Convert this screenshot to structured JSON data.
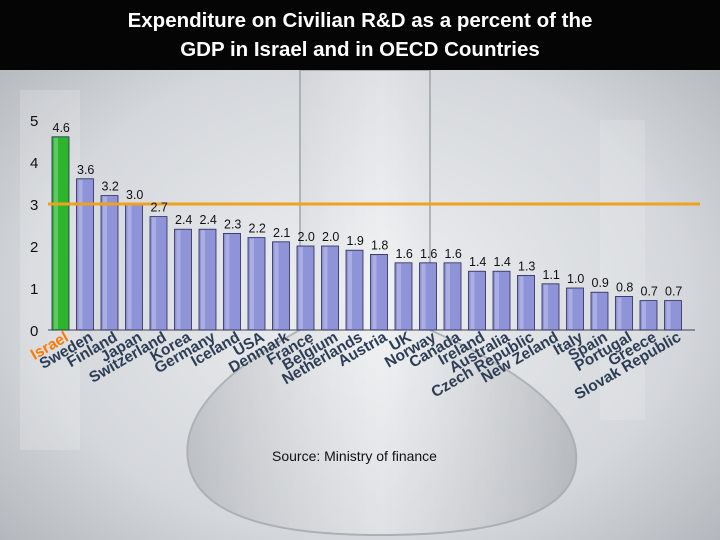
{
  "title_line1": "Expenditure on Civilian R&D as a percent of the",
  "title_line2": "GDP in Israel and in OECD Countries",
  "source": "Source: Ministry of finance",
  "colors": {
    "bar": "#8f93d8",
    "bar_highlight": "#2db52d",
    "oecd_line": "#f0a21e",
    "title_bg": "#050505"
  },
  "chart_data": {
    "type": "bar",
    "title": "Expenditure on Civilian R&D as a percent of the GDP in Israel and in OECD Countries",
    "xlabel": "",
    "ylabel": "",
    "ylim": [
      0,
      5
    ],
    "yticks": [
      "0",
      "1",
      "2",
      "3",
      "4",
      "5"
    ],
    "grid": false,
    "reference_line": 3,
    "categories": [
      "Israel",
      "Sweden",
      "Finland",
      "Japan",
      "Switzerland",
      "Korea",
      "Germany",
      "Iceland",
      "USA",
      "Denmark",
      "France",
      "Belgium",
      "Netherlands",
      "Austria",
      "UK",
      "Norway",
      "Canada",
      "Ireland",
      "Australia",
      "Czech Republic",
      "New Zeland",
      "Italy",
      "Spain",
      "Portugal",
      "Greece",
      "Slovak Republic"
    ],
    "values": [
      4.6,
      3.6,
      3.2,
      3.0,
      2.7,
      2.4,
      2.4,
      2.3,
      2.2,
      2.1,
      2.0,
      2.0,
      1.9,
      1.8,
      1.6,
      1.6,
      1.6,
      1.4,
      1.4,
      1.3,
      1.1,
      1.0,
      0.9,
      0.8,
      0.7,
      0.7
    ],
    "value_labels": [
      "4.6",
      "3.6",
      "3.2",
      "3.0",
      "2.7",
      "2.4",
      "2.4",
      "2.3",
      "2.2",
      "2.1",
      "2.0",
      "2.0",
      "1.9",
      "1.8",
      "1.6",
      "1.6",
      "1.6",
      "1.4",
      "1.4",
      "1.3",
      "1.1",
      "1.0",
      "0.9",
      "0.8",
      "0.7",
      "0.7"
    ]
  }
}
